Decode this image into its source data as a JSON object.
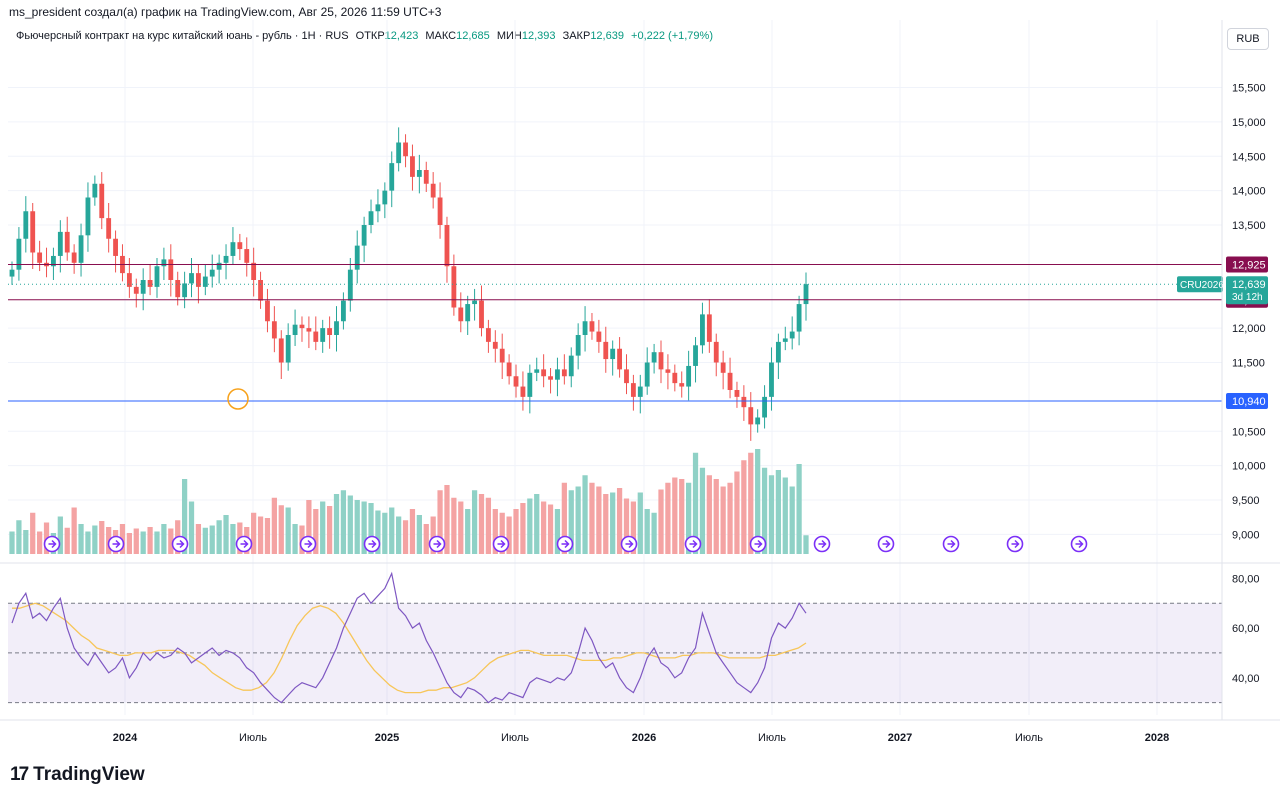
{
  "caption": "ms_president создал(а) график на TradingView.com, Авг 25, 2026 11:59 UTC+3",
  "legend": {
    "title": "Фьючерсный контракт на курс китайский юань - рубль · 1H · RUS",
    "open_label": "ОТКР",
    "open": "12,423",
    "high_label": "МАКС",
    "high": "12,685",
    "low_label": "МИН",
    "low": "12,393",
    "close_label": "ЗАКР",
    "close": "12,639",
    "change": "+0,222 (+1,79%)"
  },
  "currency_button": "RUB",
  "footer": {
    "logo_text": "TradingView",
    "logo_icon": "tradingview-logo-icon"
  },
  "colors": {
    "up": "#26a69a",
    "down": "#ef5350",
    "vol_up": "#8fd1c6",
    "vol_down": "#f4a3a3",
    "resistance": "#880e4f",
    "support": "#2962ff",
    "rsi": "#7e57c2",
    "rsi_ma": "#f7c65a"
  },
  "chart_data": [
    {
      "type": "candlestick",
      "title": "",
      "x_ticks": [
        "2024",
        "Июль",
        "2025",
        "Июль",
        "2026",
        "Июль",
        "2027",
        "Июль",
        "2028"
      ],
      "y_ticks": [
        "15,500",
        "15,000",
        "14,500",
        "14,000",
        "13,500",
        "12,000",
        "11,500",
        "10,500",
        "10,000",
        "9,500",
        "9,000"
      ],
      "ylim": [
        8.7,
        15.9
      ],
      "closes": [
        12.85,
        13.3,
        13.7,
        13.1,
        12.95,
        12.9,
        13.05,
        13.4,
        13.1,
        12.95,
        13.35,
        13.9,
        14.1,
        13.6,
        13.3,
        13.05,
        12.8,
        12.6,
        12.5,
        12.7,
        12.6,
        12.9,
        13.0,
        12.7,
        12.45,
        12.65,
        12.8,
        12.6,
        12.75,
        12.85,
        12.95,
        13.05,
        13.25,
        13.15,
        12.95,
        12.7,
        12.4,
        12.1,
        11.85,
        11.5,
        11.9,
        12.05,
        12.0,
        11.95,
        11.8,
        12.0,
        11.9,
        12.1,
        12.4,
        12.85,
        13.2,
        13.5,
        13.7,
        13.8,
        14.0,
        14.4,
        14.7,
        14.5,
        14.2,
        14.3,
        14.1,
        13.9,
        13.5,
        12.9,
        12.3,
        12.1,
        12.35,
        12.4,
        12.0,
        11.8,
        11.7,
        11.5,
        11.3,
        11.15,
        11.0,
        11.35,
        11.4,
        11.3,
        11.25,
        11.4,
        11.3,
        11.6,
        11.9,
        12.1,
        11.95,
        11.8,
        11.55,
        11.7,
        11.4,
        11.2,
        11.0,
        11.15,
        11.5,
        11.65,
        11.4,
        11.35,
        11.2,
        11.15,
        11.45,
        11.75,
        12.2,
        11.8,
        11.5,
        11.35,
        11.1,
        11.0,
        10.85,
        10.6,
        10.7,
        11.0,
        11.5,
        11.8,
        11.85,
        11.95,
        12.35,
        12.639
      ],
      "volume": [
        0.3,
        0.45,
        0.32,
        0.55,
        0.3,
        0.42,
        0.28,
        0.5,
        0.35,
        0.62,
        0.4,
        0.3,
        0.38,
        0.44,
        0.36,
        0.32,
        0.4,
        0.28,
        0.34,
        0.3,
        0.36,
        0.3,
        0.4,
        0.34,
        0.45,
        1.0,
        0.7,
        0.4,
        0.35,
        0.38,
        0.45,
        0.52,
        0.4,
        0.42,
        0.36,
        0.55,
        0.5,
        0.48,
        0.75,
        0.65,
        0.62,
        0.4,
        0.38,
        0.72,
        0.6,
        0.7,
        0.64,
        0.8,
        0.85,
        0.78,
        0.72,
        0.7,
        0.68,
        0.58,
        0.55,
        0.62,
        0.5,
        0.45,
        0.6,
        0.52,
        0.4,
        0.5,
        0.85,
        0.92,
        0.75,
        0.7,
        0.6,
        0.85,
        0.8,
        0.75,
        0.6,
        0.55,
        0.5,
        0.6,
        0.68,
        0.74,
        0.8,
        0.7,
        0.66,
        0.6,
        0.95,
        0.85,
        0.9,
        1.05,
        0.95,
        0.9,
        0.8,
        0.82,
        0.88,
        0.74,
        0.7,
        0.82,
        0.6,
        0.55,
        0.86,
        0.95,
        1.02,
        1.0,
        0.95,
        1.35,
        1.15,
        1.05,
        1.0,
        0.9,
        0.95,
        1.1,
        1.25,
        1.35,
        1.4,
        1.15,
        1.05,
        1.12,
        1.02,
        0.9,
        1.2,
        0.25
      ],
      "h_lines": [
        {
          "label": "12,925",
          "value": 12.925,
          "color": "#880e4f"
        },
        {
          "label": "12,412",
          "value": 12.412,
          "color": "#880e4f"
        },
        {
          "label": "10,940",
          "value": 10.94,
          "color": "#2962ff"
        }
      ],
      "last_price": {
        "symbol": "CRU2026",
        "value": "12,639",
        "countdown": "3d 12h"
      }
    },
    {
      "type": "line",
      "title": "",
      "y_ticks": [
        "80,00",
        "60,00",
        "40,00"
      ],
      "ylim": [
        25,
        85
      ],
      "band": [
        30,
        70
      ],
      "rsi": [
        62,
        70,
        74,
        64,
        66,
        63,
        68,
        72,
        60,
        52,
        48,
        45,
        50,
        46,
        42,
        44,
        48,
        40,
        44,
        50,
        47,
        50,
        48,
        49,
        52,
        50,
        46,
        48,
        50,
        52,
        49,
        51,
        50,
        48,
        44,
        42,
        38,
        35,
        32,
        30,
        33,
        36,
        38,
        37,
        36,
        40,
        46,
        52,
        60,
        66,
        72,
        74,
        70,
        73,
        76,
        82,
        68,
        65,
        60,
        62,
        55,
        50,
        44,
        38,
        34,
        32,
        36,
        35,
        33,
        30,
        32,
        31,
        34,
        33,
        32,
        38,
        40,
        39,
        38,
        40,
        39,
        42,
        50,
        60,
        55,
        48,
        44,
        46,
        40,
        36,
        34,
        40,
        48,
        52,
        46,
        44,
        40,
        42,
        48,
        52,
        66,
        58,
        50,
        46,
        42,
        38,
        36,
        34,
        38,
        44,
        56,
        62,
        60,
        64,
        70,
        66
      ],
      "rsi_ma": [
        68,
        68,
        69,
        70,
        69,
        67,
        65,
        63,
        60,
        57,
        55,
        52,
        51,
        50,
        49,
        49,
        50,
        50,
        50,
        51,
        51,
        51,
        50,
        49,
        47,
        45,
        42,
        40,
        38,
        36,
        35,
        35,
        36,
        38,
        42,
        48,
        55,
        61,
        65,
        68,
        69,
        68,
        66,
        62,
        57,
        52,
        47,
        43,
        40,
        37,
        35,
        34,
        34,
        34,
        35,
        35,
        36,
        36,
        37,
        38,
        40,
        43,
        46,
        48,
        49,
        50,
        51,
        51,
        50,
        49,
        49,
        49,
        49,
        48,
        47,
        47,
        47,
        47,
        48,
        48,
        49,
        50,
        50,
        49,
        48,
        48,
        48,
        49,
        49,
        50,
        50,
        50,
        49,
        48,
        48,
        48,
        48,
        48,
        49,
        49,
        50,
        51,
        52,
        54
      ]
    }
  ]
}
